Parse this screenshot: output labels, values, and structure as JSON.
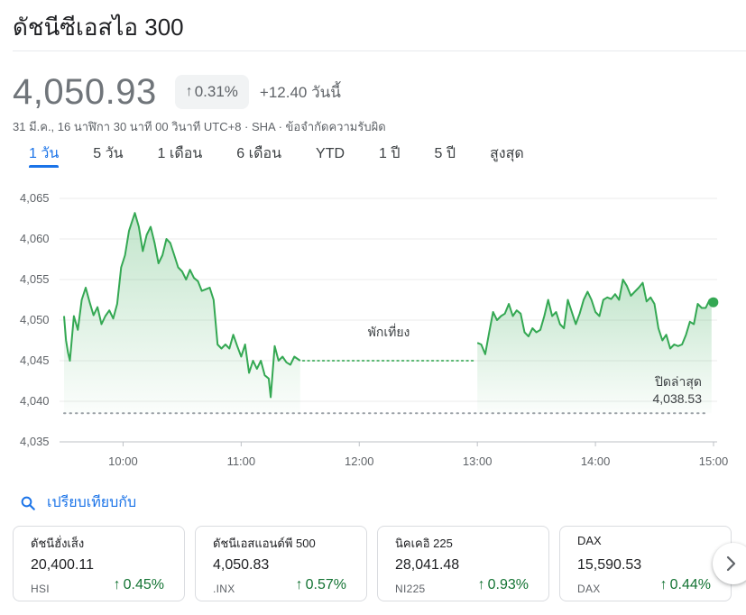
{
  "title": "ดัชนีซีเอสไอ 300",
  "quote": {
    "price": "4,050.93",
    "percent_change": "0.31%",
    "change": "+12.40 วันนี้",
    "meta": "31 มี.ค., 16 นาฬิกา 30 นาที 00 วินาที UTC+8 · SHA · ข้อจำกัดความรับผิด"
  },
  "tabs": [
    "1 วัน",
    "5 วัน",
    "1 เดือน",
    "6 เดือน",
    "YTD",
    "1 ปี",
    "5 ปี",
    "สูงสุด"
  ],
  "active_tab": "1 วัน",
  "chart_data": {
    "type": "area",
    "y_ticks": [
      "4,065",
      "4,060",
      "4,055",
      "4,050",
      "4,045",
      "4,040",
      "4,035"
    ],
    "x_ticks": [
      "10:00",
      "11:00",
      "12:00",
      "13:00",
      "14:00",
      "15:00"
    ],
    "ylim": [
      4035,
      4065
    ],
    "xlim": [
      "09:30",
      "15:00"
    ],
    "grid": true,
    "line_color": "#34a853",
    "break_label": "พักเที่ยง",
    "previous_close_label": "ปิดล่าสุด",
    "previous_close_value": "4,038.53",
    "previous_close": 4038.53,
    "lunch_level": 4045,
    "morning": [
      [
        "09:30",
        4050.5
      ],
      [
        "09:31",
        4047.5
      ],
      [
        "09:32",
        4046.0
      ],
      [
        "09:33",
        4045.0
      ],
      [
        "09:35",
        4050.5
      ],
      [
        "09:37",
        4048.8
      ],
      [
        "09:39",
        4052.5
      ],
      [
        "09:41",
        4054.0
      ],
      [
        "09:43",
        4052.2
      ],
      [
        "09:45",
        4050.6
      ],
      [
        "09:47",
        4051.6
      ],
      [
        "09:49",
        4049.5
      ],
      [
        "09:51",
        4050.5
      ],
      [
        "09:53",
        4051.2
      ],
      [
        "09:55",
        4050.2
      ],
      [
        "09:57",
        4052.0
      ],
      [
        "09:59",
        4056.5
      ],
      [
        "10:01",
        4058.0
      ],
      [
        "10:03",
        4061.0
      ],
      [
        "10:05",
        4062.5
      ],
      [
        "10:06",
        4063.2
      ],
      [
        "10:08",
        4061.5
      ],
      [
        "10:10",
        4058.5
      ],
      [
        "10:12",
        4060.5
      ],
      [
        "10:14",
        4061.5
      ],
      [
        "10:16",
        4059.5
      ],
      [
        "10:18",
        4057.0
      ],
      [
        "10:20",
        4058.0
      ],
      [
        "10:22",
        4060.0
      ],
      [
        "10:24",
        4059.5
      ],
      [
        "10:26",
        4058.0
      ],
      [
        "10:28",
        4056.5
      ],
      [
        "10:30",
        4056.0
      ],
      [
        "10:32",
        4055.0
      ],
      [
        "10:34",
        4056.2
      ],
      [
        "10:36",
        4055.2
      ],
      [
        "10:38",
        4054.8
      ],
      [
        "10:40",
        4053.6
      ],
      [
        "10:42",
        4053.8
      ],
      [
        "10:44",
        4054.0
      ],
      [
        "10:46",
        4052.5
      ],
      [
        "10:48",
        4047.0
      ],
      [
        "10:50",
        4046.5
      ],
      [
        "10:52",
        4047.0
      ],
      [
        "10:54",
        4046.5
      ],
      [
        "10:56",
        4048.2
      ],
      [
        "10:58",
        4046.8
      ],
      [
        "11:00",
        4045.5
      ],
      [
        "11:02",
        4047.0
      ],
      [
        "11:04",
        4043.5
      ],
      [
        "11:06",
        4045.0
      ],
      [
        "11:08",
        4044.0
      ],
      [
        "11:10",
        4045.0
      ],
      [
        "11:12",
        4043.2
      ],
      [
        "11:14",
        4042.8
      ],
      [
        "11:15",
        4040.5
      ],
      [
        "11:17",
        4046.8
      ],
      [
        "11:19",
        4045.0
      ],
      [
        "11:21",
        4045.5
      ],
      [
        "11:23",
        4044.8
      ],
      [
        "11:25",
        4044.5
      ],
      [
        "11:27",
        4045.5
      ],
      [
        "11:30",
        4045.0
      ]
    ],
    "afternoon": [
      [
        "13:00",
        4047.2
      ],
      [
        "13:02",
        4047.0
      ],
      [
        "13:04",
        4045.8
      ],
      [
        "13:06",
        4048.5
      ],
      [
        "13:08",
        4051.0
      ],
      [
        "13:10",
        4050.0
      ],
      [
        "13:12",
        4050.5
      ],
      [
        "13:14",
        4050.8
      ],
      [
        "13:16",
        4052.0
      ],
      [
        "13:18",
        4050.5
      ],
      [
        "13:20",
        4051.2
      ],
      [
        "13:22",
        4050.8
      ],
      [
        "13:24",
        4048.5
      ],
      [
        "13:26",
        4048.0
      ],
      [
        "13:28",
        4049.0
      ],
      [
        "13:30",
        4048.5
      ],
      [
        "13:32",
        4048.8
      ],
      [
        "13:34",
        4050.5
      ],
      [
        "13:36",
        4052.5
      ],
      [
        "13:38",
        4050.5
      ],
      [
        "13:40",
        4051.0
      ],
      [
        "13:42",
        4049.5
      ],
      [
        "13:44",
        4049.0
      ],
      [
        "13:46",
        4052.5
      ],
      [
        "13:48",
        4051.0
      ],
      [
        "13:50",
        4049.5
      ],
      [
        "13:52",
        4050.8
      ],
      [
        "13:54",
        4052.5
      ],
      [
        "13:56",
        4053.5
      ],
      [
        "13:58",
        4052.5
      ],
      [
        "14:00",
        4051.0
      ],
      [
        "14:02",
        4050.5
      ],
      [
        "14:04",
        4052.5
      ],
      [
        "14:06",
        4052.8
      ],
      [
        "14:08",
        4052.6
      ],
      [
        "14:10",
        4053.2
      ],
      [
        "14:12",
        4052.5
      ],
      [
        "14:14",
        4055.0
      ],
      [
        "14:16",
        4054.2
      ],
      [
        "14:18",
        4053.0
      ],
      [
        "14:20",
        4053.5
      ],
      [
        "14:22",
        4054.0
      ],
      [
        "14:24",
        4054.6
      ],
      [
        "14:26",
        4052.3
      ],
      [
        "14:28",
        4052.8
      ],
      [
        "14:30",
        4052.0
      ],
      [
        "14:32",
        4049.0
      ],
      [
        "14:34",
        4047.5
      ],
      [
        "14:36",
        4048.2
      ],
      [
        "14:38",
        4046.5
      ],
      [
        "14:40",
        4047.0
      ],
      [
        "14:42",
        4046.8
      ],
      [
        "14:44",
        4047.0
      ],
      [
        "14:46",
        4048.2
      ],
      [
        "14:48",
        4049.8
      ],
      [
        "14:50",
        4049.5
      ],
      [
        "14:52",
        4052.0
      ],
      [
        "14:54",
        4051.5
      ],
      [
        "14:56",
        4051.5
      ],
      [
        "14:58",
        4052.5
      ],
      [
        "14:59",
        4052.2
      ]
    ]
  },
  "compare_label": "เปรียบเทียบกับ",
  "related": [
    {
      "name": "ดัชนีฮั่งเส็ง",
      "price": "20,400.11",
      "symbol": "HSI",
      "change": "0.45%"
    },
    {
      "name": "ดัชนีเอสแอนด์พี 500",
      "price": "4,050.83",
      "symbol": ".INX",
      "change": "0.57%"
    },
    {
      "name": "นิคเคอิ 225",
      "price": "28,041.48",
      "symbol": "NI225",
      "change": "0.93%"
    },
    {
      "name": "DAX",
      "price": "15,590.53",
      "symbol": "DAX",
      "change": "0.44%"
    }
  ],
  "icons": {
    "up_arrow": "arrow-up-icon",
    "search": "search-icon",
    "next": "chevron-right-icon"
  }
}
